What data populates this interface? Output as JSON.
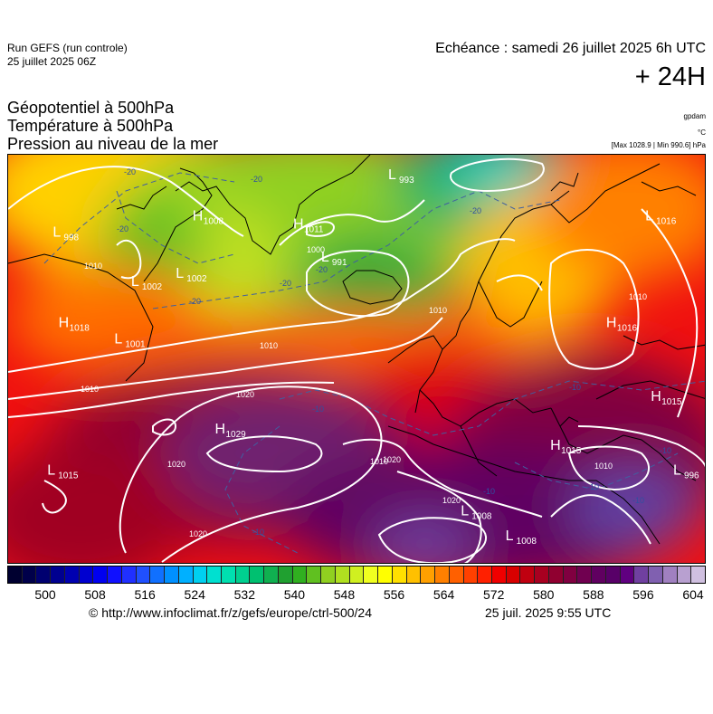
{
  "header": {
    "run_title": "Run GEFS (run controle)",
    "run_date": "25 juillet 2025 06Z",
    "forecast_time": "Echéance : samedi 26 juillet 2025 6h UTC",
    "lead_time": "+ 24H"
  },
  "fields": [
    "Géopotentiel à 500hPa",
    "Température à 500hPa",
    "Pression au niveau de la mer"
  ],
  "units": {
    "geopotential": "gpdam",
    "temperature": "°C",
    "pressure": "[Max 1028.9 | Min 990.6] hPa"
  },
  "pressure_centers": [
    {
      "type": "H",
      "value": "1008",
      "lon": -42,
      "lat": 68
    },
    {
      "type": "H",
      "value": "1011",
      "lon": -24,
      "lat": 67
    },
    {
      "type": "L",
      "value": "993",
      "lon": -7,
      "lat": 73
    },
    {
      "type": "L",
      "value": "1016",
      "lon": 39,
      "lat": 68
    },
    {
      "type": "L",
      "value": "998",
      "lon": -67,
      "lat": 66
    },
    {
      "type": "L",
      "value": "1002",
      "lon": -53,
      "lat": 60
    },
    {
      "type": "L",
      "value": "1002",
      "lon": -45,
      "lat": 61
    },
    {
      "type": "L",
      "value": "991",
      "lon": -19,
      "lat": 63
    },
    {
      "type": "H",
      "value": "1018",
      "lon": -66,
      "lat": 55
    },
    {
      "type": "L",
      "value": "1001",
      "lon": -56,
      "lat": 53
    },
    {
      "type": "H",
      "value": "1016",
      "lon": 32,
      "lat": 55
    },
    {
      "type": "H",
      "value": "1029",
      "lon": -38,
      "lat": 42
    },
    {
      "type": "H",
      "value": "1015",
      "lon": 40,
      "lat": 46
    },
    {
      "type": "H",
      "value": "1015",
      "lon": 22,
      "lat": 40
    },
    {
      "type": "L",
      "value": "996",
      "lon": 44,
      "lat": 37
    },
    {
      "type": "L",
      "value": "1015",
      "lon": -68,
      "lat": 37
    },
    {
      "type": "L",
      "value": "1008",
      "lon": 6,
      "lat": 32
    },
    {
      "type": "L",
      "value": "1008",
      "lon": 14,
      "lat": 29
    }
  ],
  "isobar_labels": [
    "1000",
    "1010",
    "1010",
    "1010",
    "1010",
    "1010",
    "1020",
    "1020",
    "1020",
    "1020",
    "1010",
    "1010",
    "1020"
  ],
  "isotherm_labels": [
    "-20",
    "-20",
    "-20",
    "-20",
    "-20",
    "-20",
    "-20",
    "-10",
    "-10",
    "-10",
    "-10",
    "-10",
    "-10",
    "-10"
  ],
  "colorbar": {
    "colors": [
      "#000030",
      "#00004a",
      "#000070",
      "#000090",
      "#0000b0",
      "#0000d0",
      "#0000f0",
      "#1010ff",
      "#2030ff",
      "#2050ff",
      "#1070ff",
      "#0090ff",
      "#00b0ff",
      "#00d0f0",
      "#00e0d0",
      "#00e0b0",
      "#00d090",
      "#00c070",
      "#10b050",
      "#20a030",
      "#30b020",
      "#60c020",
      "#90d020",
      "#b0e020",
      "#d0f020",
      "#f0ff20",
      "#ffff00",
      "#ffe000",
      "#ffc000",
      "#ffa000",
      "#ff8000",
      "#ff6000",
      "#ff4000",
      "#ff2000",
      "#f00000",
      "#d80000",
      "#c00010",
      "#a80020",
      "#900030",
      "#800040",
      "#700050",
      "#600060",
      "#580068",
      "#600080",
      "#7040a0",
      "#8060b0",
      "#a080c0",
      "#b8a0d0",
      "#d0c0e0"
    ],
    "ticks": [
      "500",
      "508",
      "516",
      "524",
      "532",
      "540",
      "548",
      "556",
      "564",
      "572",
      "580",
      "588",
      "596",
      "604"
    ]
  },
  "footer": {
    "url": "© http://www.infoclimat.fr/z/gefs/europe/ctrl-500/24",
    "issued": "25 juil. 2025  9:55 UTC"
  }
}
